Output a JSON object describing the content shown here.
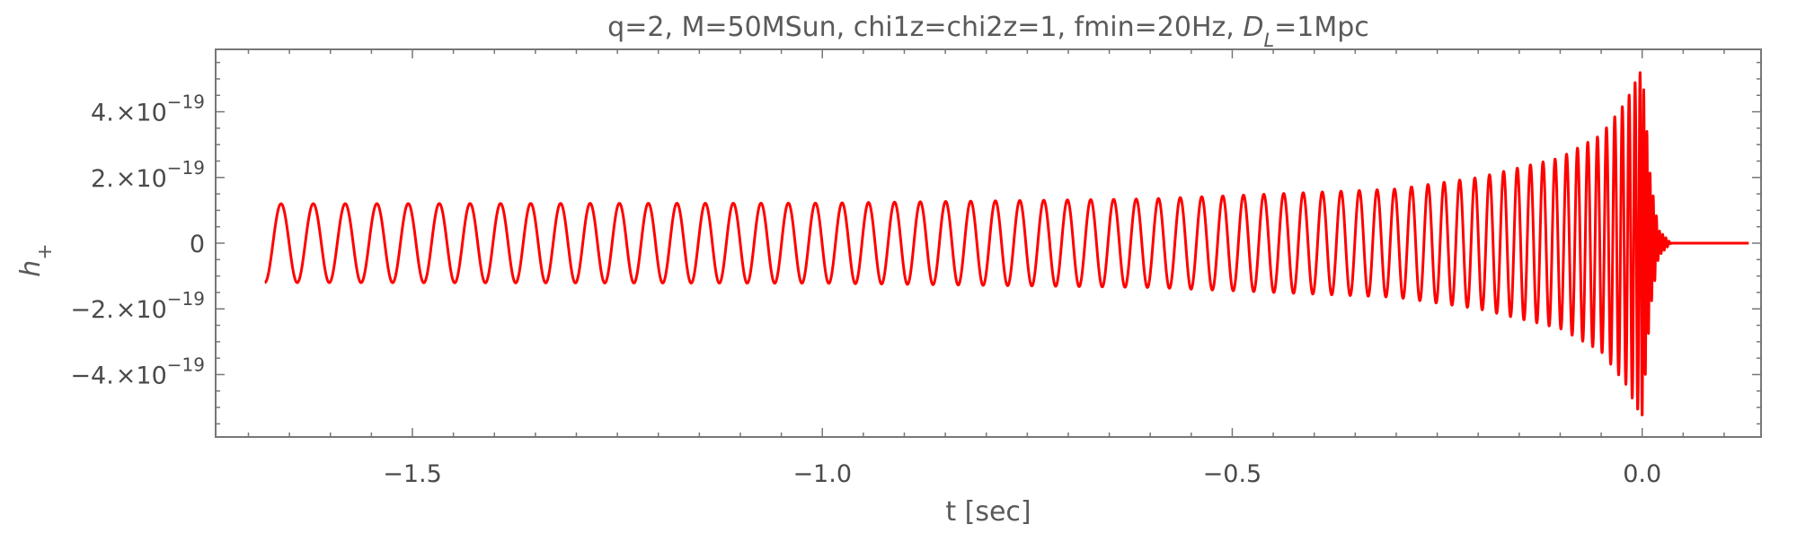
{
  "chart_data": {
    "type": "line",
    "title": {
      "prefix": "q=2, M=50MSun, chi1z=chi2z=1, fmin=20Hz, ",
      "dl_symbol": "D",
      "dl_subscript": "L",
      "dl_value": "=1Mpc"
    },
    "xlabel": "t [sec]",
    "ylabel": {
      "symbol": "h",
      "subscript": "+"
    },
    "xlim": [
      -1.74,
      0.145
    ],
    "ylim": [
      -5.9e-19,
      5.9e-19
    ],
    "x_ticks": [
      {
        "value": -1.5,
        "label": "−1.5"
      },
      {
        "value": -1.0,
        "label": "−1.0"
      },
      {
        "value": -0.5,
        "label": "−0.5"
      },
      {
        "value": 0.0,
        "label": "0.0"
      }
    ],
    "y_ticks": [
      {
        "value": 4e-19,
        "mant": "4.",
        "times": "×",
        "base": "10",
        "exp": "−19"
      },
      {
        "value": 2e-19,
        "mant": "2.",
        "times": "×",
        "base": "10",
        "exp": "−19"
      },
      {
        "value": 0,
        "mant": "0",
        "times": "",
        "base": "",
        "exp": ""
      },
      {
        "value": -2e-19,
        "mant": "−2.",
        "times": "×",
        "base": "10",
        "exp": "−19"
      },
      {
        "value": -4e-19,
        "mant": "−4.",
        "times": "×",
        "base": "10",
        "exp": "−19"
      }
    ],
    "series": [
      {
        "color": "#ff0000",
        "t_start": -1.68,
        "t_merger": 0.0,
        "t_end": 0.13,
        "initial_value": -1.2e-19,
        "cycles_to_merger": 66,
        "amplitude_envelope": [
          [
            -1.66,
            1.2e-19
          ],
          [
            -1.0,
            1.22e-19
          ],
          [
            -0.6,
            1.35e-19
          ],
          [
            -0.3,
            1.65e-19
          ],
          [
            -0.2,
            2e-19
          ],
          [
            -0.1,
            2.6e-19
          ],
          [
            -0.05,
            3.3e-19
          ],
          [
            -0.02,
            4.3e-19
          ],
          [
            -0.005,
            5.1e-19
          ],
          [
            0.0,
            5.3e-19
          ],
          [
            0.01,
            2e-19
          ],
          [
            0.02,
            4e-20
          ],
          [
            0.035,
            0.0
          ],
          [
            0.13,
            0.0
          ]
        ]
      }
    ]
  }
}
